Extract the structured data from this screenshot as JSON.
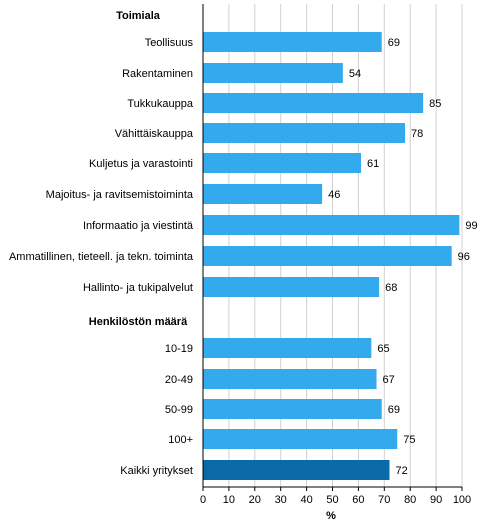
{
  "chart_data": {
    "type": "bar",
    "orientation": "horizontal",
    "groups": [
      {
        "title": "Toimiala",
        "categories": [
          "Teollisuus",
          "Rakentaminen",
          "Tukkukauppa",
          "Vähittäiskauppa",
          "Kuljetus ja varastointi",
          "Majoitus- ja ravitsemistoiminta",
          "Informaatio ja viestintä",
          "Ammatillinen, tieteell. ja tekn. toiminta",
          "Hallinto- ja tukipalvelut"
        ],
        "values": [
          69,
          54,
          85,
          78,
          61,
          46,
          99,
          96,
          68
        ]
      },
      {
        "title": "Henkilöstön määrä",
        "categories": [
          "10-19",
          "20-49",
          "50-99",
          "100+",
          "Kaikki yritykset"
        ],
        "values": [
          65,
          67,
          69,
          75,
          72
        ]
      }
    ],
    "highlight_category": "Kaikki yritykset",
    "xlabel": "%",
    "xlim": [
      0,
      100
    ],
    "xticks": [
      0,
      10,
      20,
      30,
      40,
      50,
      60,
      70,
      80,
      90,
      100
    ],
    "grid": "vertical",
    "colors": {
      "bar": "#33aaee",
      "highlight": "#0a6aa8",
      "grid": "#d0d0d0",
      "axis": "#000000"
    }
  }
}
